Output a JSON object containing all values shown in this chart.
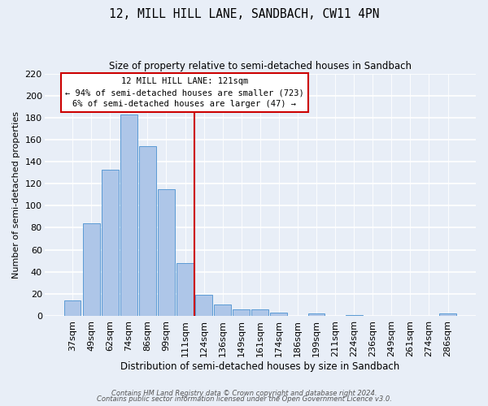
{
  "title": "12, MILL HILL LANE, SANDBACH, CW11 4PN",
  "subtitle": "Size of property relative to semi-detached houses in Sandbach",
  "xlabel": "Distribution of semi-detached houses by size in Sandbach",
  "ylabel": "Number of semi-detached properties",
  "bar_labels": [
    "37sqm",
    "49sqm",
    "62sqm",
    "74sqm",
    "86sqm",
    "99sqm",
    "111sqm",
    "124sqm",
    "136sqm",
    "149sqm",
    "161sqm",
    "174sqm",
    "186sqm",
    "199sqm",
    "211sqm",
    "224sqm",
    "236sqm",
    "249sqm",
    "261sqm",
    "274sqm",
    "286sqm"
  ],
  "bar_values": [
    14,
    84,
    133,
    183,
    154,
    115,
    48,
    19,
    10,
    6,
    6,
    3,
    0,
    2,
    0,
    1,
    0,
    0,
    0,
    0,
    2
  ],
  "bar_color": "#aec6e8",
  "bar_edgecolor": "#5b9bd5",
  "vline_color": "#cc0000",
  "vline_index": 7,
  "ylim": [
    0,
    220
  ],
  "yticks": [
    0,
    20,
    40,
    60,
    80,
    100,
    120,
    140,
    160,
    180,
    200,
    220
  ],
  "annotation_title": "12 MILL HILL LANE: 121sqm",
  "annotation_line1": "← 94% of semi-detached houses are smaller (723)",
  "annotation_line2": "6% of semi-detached houses are larger (47) →",
  "annotation_box_color": "#ffffff",
  "annotation_border_color": "#cc0000",
  "footer1": "Contains HM Land Registry data © Crown copyright and database right 2024.",
  "footer2": "Contains public sector information licensed under the Open Government Licence v3.0.",
  "bg_color": "#e8eef7",
  "plot_bg_color": "#e8eef7"
}
